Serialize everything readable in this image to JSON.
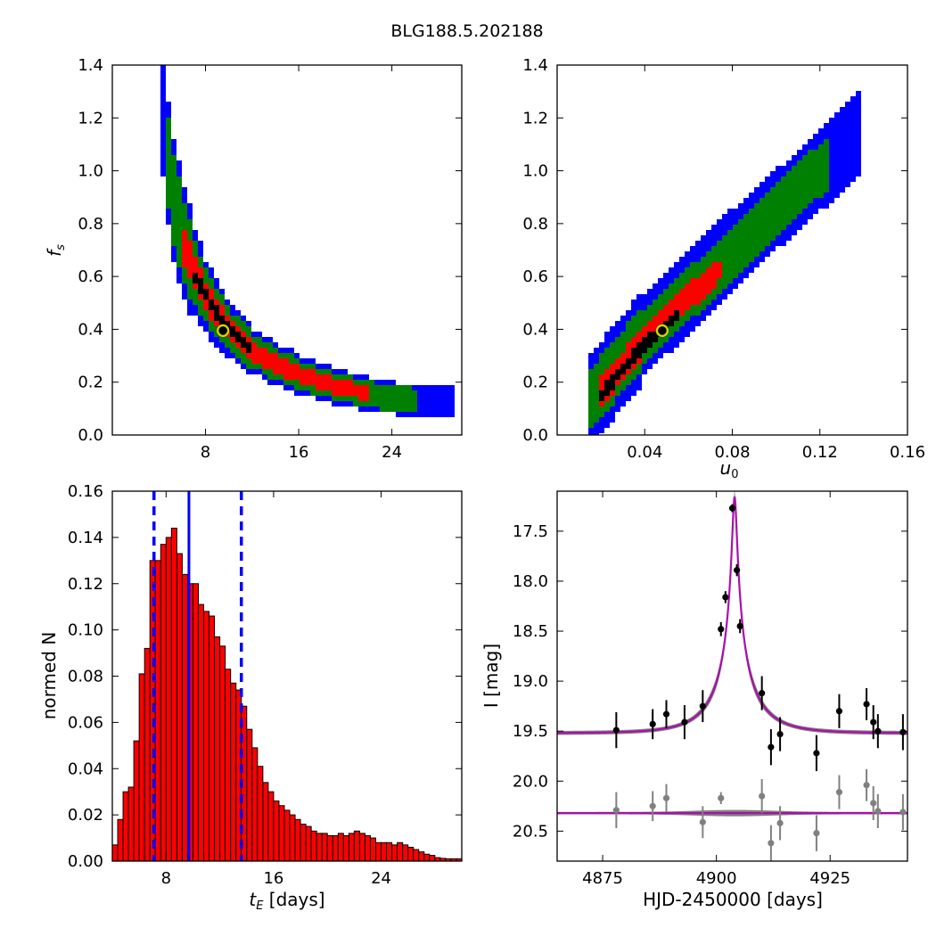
{
  "figure": {
    "title": "BLG188.5.202188"
  },
  "chart_data": [
    {
      "id": "fs_vs_tE",
      "type": "heatmap",
      "title": "",
      "xlabel": "",
      "ylabel": "f_s",
      "xlim": [
        0,
        30
      ],
      "ylim": [
        0,
        1.4
      ],
      "xticks": [
        8,
        16,
        24
      ],
      "yticks": [
        0.0,
        0.2,
        0.4,
        0.6,
        0.8,
        1.0,
        1.2,
        1.4
      ],
      "confidence_colors": {
        "3sigma": "#0000ff",
        "2sigma": "#008000",
        "1sigma": "#ff0000",
        "peak": "#000000"
      },
      "best_fit": {
        "x": 9.5,
        "y": 0.395,
        "marker_color": "#d4d400"
      },
      "bands": [
        {
          "level": "3sigma",
          "center": [
            [
              4.3,
              1.23
            ],
            [
              5,
              0.95
            ],
            [
              6,
              0.75
            ],
            [
              7,
              0.62
            ],
            [
              8,
              0.53
            ],
            [
              9,
              0.46
            ],
            [
              10,
              0.4
            ],
            [
              12,
              0.32
            ],
            [
              14,
              0.27
            ],
            [
              16,
              0.23
            ],
            [
              18,
              0.2
            ],
            [
              20,
              0.175
            ],
            [
              22,
              0.155
            ],
            [
              24,
              0.14
            ],
            [
              26,
              0.13
            ],
            [
              28,
              0.125
            ],
            [
              29.5,
              0.125
            ]
          ],
          "half_width": 0.045
        },
        {
          "level": "2sigma",
          "center": [
            [
              4.4,
              1.2
            ],
            [
              5,
              0.95
            ],
            [
              6,
              0.75
            ],
            [
              7,
              0.62
            ],
            [
              8,
              0.53
            ],
            [
              9,
              0.46
            ],
            [
              10,
              0.4
            ],
            [
              12,
              0.32
            ],
            [
              14,
              0.27
            ],
            [
              16,
              0.23
            ],
            [
              18,
              0.2
            ],
            [
              20,
              0.175
            ],
            [
              22,
              0.155
            ],
            [
              24,
              0.14
            ],
            [
              26,
              0.13
            ]
          ],
          "half_width": 0.032
        },
        {
          "level": "1sigma",
          "center": [
            [
              5.8,
              0.75
            ],
            [
              7,
              0.62
            ],
            [
              8,
              0.53
            ],
            [
              9,
              0.46
            ],
            [
              10,
              0.4
            ],
            [
              12,
              0.32
            ],
            [
              14,
              0.27
            ],
            [
              16,
              0.23
            ],
            [
              18,
              0.2
            ],
            [
              20,
              0.175
            ],
            [
              22,
              0.16
            ]
          ],
          "half_width": 0.016
        },
        {
          "level": "peak",
          "center": [
            [
              7,
              0.6
            ],
            [
              8,
              0.53
            ],
            [
              9,
              0.46
            ],
            [
              10,
              0.4
            ],
            [
              11,
              0.36
            ],
            [
              12,
              0.32
            ]
          ],
          "half_width": 0.005
        }
      ]
    },
    {
      "id": "fs_vs_u0",
      "type": "heatmap",
      "title": "",
      "xlabel": "u_0",
      "ylabel": "",
      "xlim": [
        0,
        0.16
      ],
      "ylim": [
        0,
        1.4
      ],
      "xticks": [
        0.04,
        0.08,
        0.12,
        0.16
      ],
      "yticks": [
        0.0,
        0.2,
        0.4,
        0.6,
        0.8,
        1.0,
        1.2,
        1.4
      ],
      "confidence_colors": {
        "3sigma": "#0000ff",
        "2sigma": "#008000",
        "1sigma": "#ff0000",
        "peak": "#000000"
      },
      "best_fit": {
        "x": 0.048,
        "y": 0.395,
        "marker_color": "#d4d400"
      },
      "bands": [
        {
          "level": "3sigma",
          "center": [
            [
              0.015,
              0.13
            ],
            [
              0.04,
              0.38
            ],
            [
              0.08,
              0.7
            ],
            [
              0.12,
              1.0
            ],
            [
              0.14,
              1.16
            ]
          ],
          "half_width": 0.07
        },
        {
          "level": "2sigma",
          "center": [
            [
              0.015,
              0.13
            ],
            [
              0.04,
              0.38
            ],
            [
              0.08,
              0.68
            ],
            [
              0.11,
              0.93
            ],
            [
              0.125,
              1.04
            ]
          ],
          "half_width": 0.045
        },
        {
          "level": "1sigma",
          "center": [
            [
              0.02,
              0.16
            ],
            [
              0.04,
              0.36
            ],
            [
              0.06,
              0.52
            ],
            [
              0.075,
              0.63
            ]
          ],
          "half_width": 0.02
        },
        {
          "level": "peak",
          "center": [
            [
              0.02,
              0.15
            ],
            [
              0.035,
              0.3
            ],
            [
              0.05,
              0.42
            ],
            [
              0.055,
              0.46
            ]
          ],
          "half_width": 0.006
        }
      ]
    },
    {
      "id": "tE_histogram",
      "type": "bar",
      "title": "",
      "xlabel": "t_E [days]",
      "ylabel": "normed N",
      "xlim": [
        4,
        30
      ],
      "ylim": [
        0,
        0.16
      ],
      "xticks": [
        8,
        16,
        24
      ],
      "yticks": [
        0.0,
        0.02,
        0.04,
        0.06,
        0.08,
        0.1,
        0.12,
        0.14,
        0.16
      ],
      "bar_color": "#ff0000",
      "bin_width": 0.4,
      "bin_start": 4,
      "values": [
        0.007,
        0.018,
        0.03,
        0.032,
        0.052,
        0.081,
        0.092,
        0.13,
        0.13,
        0.137,
        0.14,
        0.144,
        0.133,
        0.124,
        0.12,
        0.12,
        0.111,
        0.108,
        0.106,
        0.097,
        0.093,
        0.083,
        0.077,
        0.074,
        0.067,
        0.057,
        0.049,
        0.041,
        0.034,
        0.03,
        0.026,
        0.024,
        0.022,
        0.02,
        0.018,
        0.016,
        0.015,
        0.013,
        0.012,
        0.012,
        0.011,
        0.011,
        0.012,
        0.011,
        0.012,
        0.013,
        0.012,
        0.011,
        0.01,
        0.008,
        0.008,
        0.008,
        0.007,
        0.008,
        0.007,
        0.006,
        0.005,
        0.004,
        0.003,
        0.0025,
        0.0015,
        0.0012,
        0.001,
        0.001,
        0.001
      ],
      "median_line": 9.7,
      "interval_lines": [
        7.1,
        13.6
      ],
      "line_color": "#0000ff"
    },
    {
      "id": "light_curve",
      "type": "scatter",
      "title": "",
      "xlabel": "HJD-2450000 [days]",
      "ylabel": "I [mag]",
      "xlim": [
        4865,
        4942
      ],
      "ylim": [
        20.8,
        17.1
      ],
      "xticks": [
        4875,
        4900,
        4925
      ],
      "yticks": [
        17.5,
        18.0,
        18.5,
        19.0,
        19.5,
        20.0,
        20.5
      ],
      "model": {
        "t0": 4904,
        "tE": 9.5,
        "u0": 0.048,
        "fs": 0.395,
        "baseline": 19.52,
        "residual_baseline": 20.32,
        "color": "#aa10aa"
      },
      "data_points": {
        "color": "#000000",
        "x": [
          4878,
          4886,
          4889,
          4893,
          4897,
          4901,
          4902,
          4903.5,
          4904.5,
          4905.2,
          4910,
          4912,
          4914,
          4922,
          4927,
          4933,
          4934.5,
          4935.5,
          4941
        ],
        "y": [
          19.49,
          19.43,
          19.33,
          19.41,
          19.25,
          18.48,
          18.16,
          17.27,
          17.89,
          18.45,
          19.12,
          19.66,
          19.53,
          19.72,
          19.3,
          19.23,
          19.41,
          19.5,
          19.51
        ],
        "err": [
          0.18,
          0.15,
          0.14,
          0.17,
          0.16,
          0.07,
          0.06,
          0.04,
          0.06,
          0.07,
          0.17,
          0.18,
          0.17,
          0.18,
          0.17,
          0.16,
          0.17,
          0.17,
          0.18
        ]
      },
      "residual_points": {
        "color": "#808080",
        "x": [
          4878,
          4886,
          4889,
          4897,
          4901,
          4910,
          4912,
          4914,
          4922,
          4927,
          4933,
          4934.5,
          4935.5,
          4941
        ],
        "y": [
          20.29,
          20.25,
          20.17,
          20.41,
          20.17,
          20.15,
          20.62,
          20.42,
          20.52,
          20.11,
          20.04,
          20.22,
          20.3,
          20.31
        ],
        "err": [
          0.18,
          0.15,
          0.14,
          0.16,
          0.06,
          0.17,
          0.18,
          0.17,
          0.18,
          0.17,
          0.16,
          0.17,
          0.17,
          0.18
        ]
      }
    }
  ]
}
